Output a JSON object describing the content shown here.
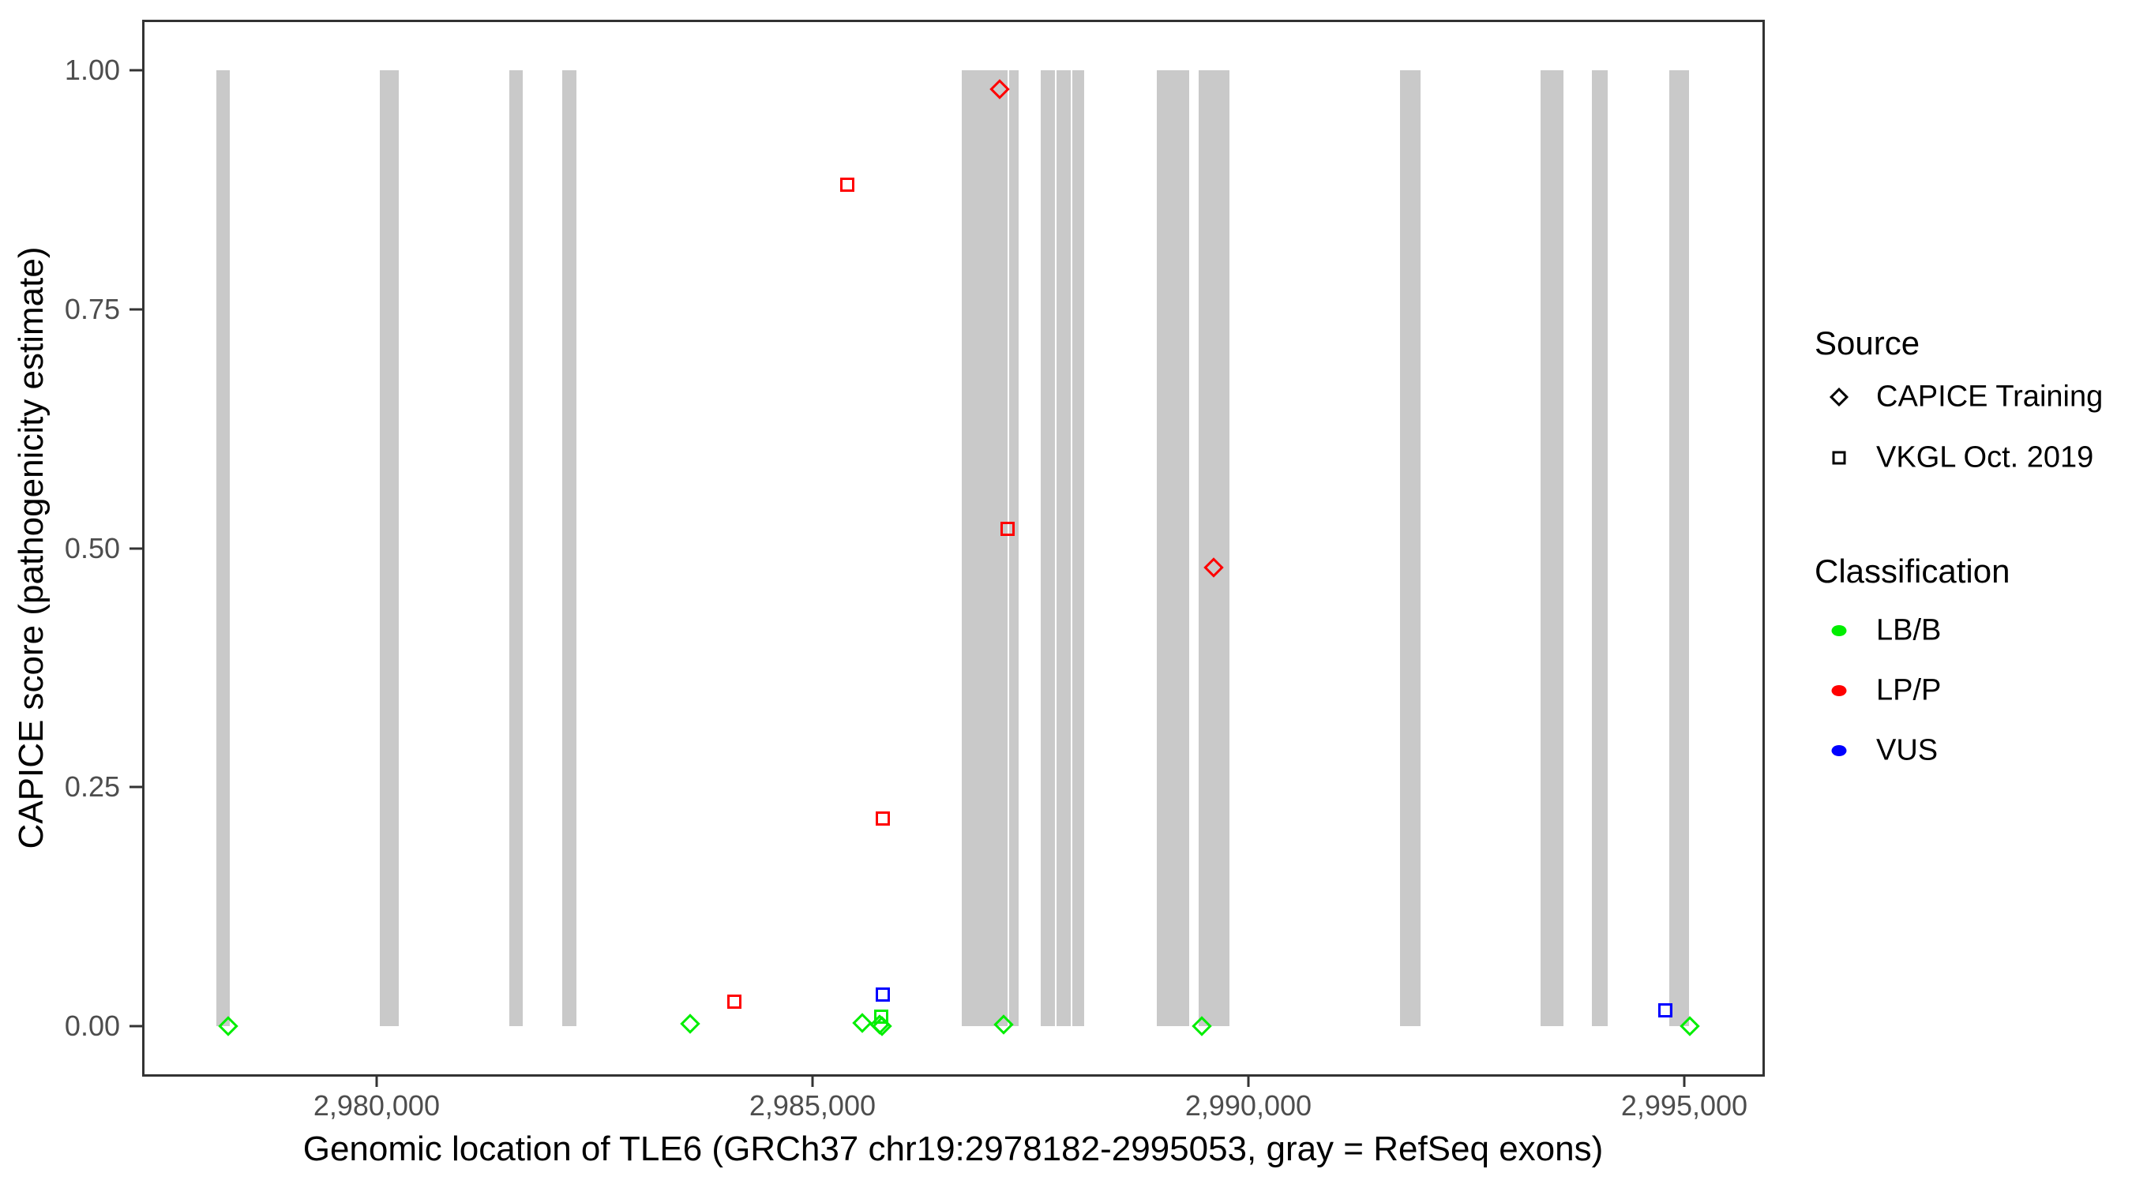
{
  "chart_data": {
    "type": "scatter",
    "title": "",
    "xlabel": "Genomic location of TLE6 (GRCh37 chr19:2978182-2995053, gray = RefSeq exons)",
    "ylabel": "CAPICE score (pathogenicity estimate)",
    "xlim": [
      2977338,
      2995897
    ],
    "ylim": [
      -0.05,
      1.05
    ],
    "grid": false,
    "x_ticks": [
      {
        "value": 2980000,
        "label": "2,980,000"
      },
      {
        "value": 2985000,
        "label": "2,985,000"
      },
      {
        "value": 2990000,
        "label": "2,990,000"
      },
      {
        "value": 2995000,
        "label": "2,995,000"
      }
    ],
    "y_ticks": [
      {
        "value": 0.0,
        "label": "0.00"
      },
      {
        "value": 0.25,
        "label": "0.25"
      },
      {
        "value": 0.5,
        "label": "0.50"
      },
      {
        "value": 0.75,
        "label": "0.75"
      },
      {
        "value": 1.0,
        "label": "1.00"
      }
    ],
    "exons_note": "gray rectangles spanning score 0 to 1, RefSeq exons",
    "exons": [
      {
        "start": 2978160,
        "end": 2978320
      },
      {
        "start": 2980035,
        "end": 2980255
      },
      {
        "start": 2981520,
        "end": 2981675
      },
      {
        "start": 2982130,
        "end": 2982290
      },
      {
        "start": 2986715,
        "end": 2987240
      },
      {
        "start": 2987255,
        "end": 2987365
      },
      {
        "start": 2987620,
        "end": 2987780
      },
      {
        "start": 2987800,
        "end": 2987965
      },
      {
        "start": 2987980,
        "end": 2988115
      },
      {
        "start": 2988950,
        "end": 2989320
      },
      {
        "start": 2989430,
        "end": 2989785
      },
      {
        "start": 2991740,
        "end": 2991975
      },
      {
        "start": 2993350,
        "end": 2993615
      },
      {
        "start": 2993940,
        "end": 2994120
      },
      {
        "start": 2994830,
        "end": 2995053
      }
    ],
    "points": [
      {
        "x": 2978300,
        "y": 0.0,
        "source": "CAPICE Training",
        "classification": "LB/B"
      },
      {
        "x": 2983600,
        "y": 0.003,
        "source": "CAPICE Training",
        "classification": "LB/B"
      },
      {
        "x": 2984100,
        "y": 0.026,
        "source": "VKGL Oct. 2019",
        "classification": "LP/P"
      },
      {
        "x": 2985400,
        "y": 0.88,
        "source": "VKGL Oct. 2019",
        "classification": "LP/P"
      },
      {
        "x": 2985570,
        "y": 0.004,
        "source": "CAPICE Training",
        "classification": "LB/B"
      },
      {
        "x": 2985790,
        "y": 0.01,
        "source": "VKGL Oct. 2019",
        "classification": "LB/B"
      },
      {
        "x": 2985770,
        "y": 0.002,
        "source": "CAPICE Training",
        "classification": "LB/B"
      },
      {
        "x": 2985800,
        "y": 0.0,
        "source": "CAPICE Training",
        "classification": "LB/B"
      },
      {
        "x": 2985810,
        "y": 0.033,
        "source": "VKGL Oct. 2019",
        "classification": "VUS"
      },
      {
        "x": 2985810,
        "y": 0.217,
        "source": "VKGL Oct. 2019",
        "classification": "LP/P"
      },
      {
        "x": 2987150,
        "y": 0.98,
        "source": "CAPICE Training",
        "classification": "LP/P"
      },
      {
        "x": 2987195,
        "y": 0.002,
        "source": "CAPICE Training",
        "classification": "LB/B"
      },
      {
        "x": 2987240,
        "y": 0.52,
        "source": "VKGL Oct. 2019",
        "classification": "LP/P"
      },
      {
        "x": 2989470,
        "y": 0.0,
        "source": "CAPICE Training",
        "classification": "LB/B"
      },
      {
        "x": 2989600,
        "y": 0.48,
        "source": "CAPICE Training",
        "classification": "LP/P"
      },
      {
        "x": 2994780,
        "y": 0.017,
        "source": "VKGL Oct. 2019",
        "classification": "VUS"
      },
      {
        "x": 2995060,
        "y": 0.0,
        "source": "CAPICE Training",
        "classification": "LB/B"
      }
    ],
    "colors": {
      "LB/B": "#00ee00",
      "LP/P": "#ff0000",
      "VUS": "#0000ff",
      "exon": "#c9c9c9",
      "axis": "#333333",
      "tick_label": "#4d4d4d"
    }
  },
  "legend": {
    "source_title": "Source",
    "source_items": [
      {
        "shape": "diamond",
        "label": "CAPICE Training"
      },
      {
        "shape": "square",
        "label": "VKGL Oct. 2019"
      }
    ],
    "classification_title": "Classification",
    "classification_items": [
      {
        "label": "LB/B",
        "color": "#00ee00"
      },
      {
        "label": "LP/P",
        "color": "#ff0000"
      },
      {
        "label": "VUS",
        "color": "#0000ff"
      }
    ]
  }
}
